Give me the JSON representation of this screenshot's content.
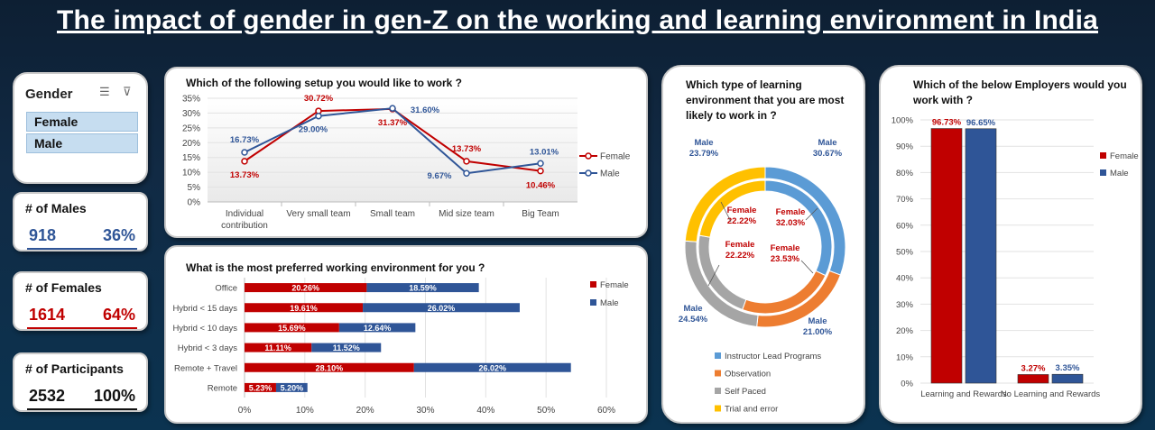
{
  "title": "The impact of gender in gen-Z on the working and learning environment in India",
  "slicer": {
    "header": "Gender",
    "items": [
      "Female",
      "Male"
    ]
  },
  "kpis": {
    "males": {
      "label": "# of Males",
      "value": "918",
      "pct": "36%",
      "color": "#2f5597"
    },
    "females": {
      "label": "# of Females",
      "value": "1614",
      "pct": "64%",
      "color": "#c00000"
    },
    "participants": {
      "label": "# of Participants",
      "value": "2532",
      "pct": "100%",
      "color": "#111111"
    }
  },
  "colors": {
    "female": "#c00000",
    "male": "#2f5597"
  },
  "chart_data": [
    {
      "type": "line",
      "title": "Which of the following setup you would like to work ?",
      "categories": [
        "Individual contribution",
        "Very small team",
        "Small team",
        "Mid size team",
        "Big Team"
      ],
      "series": [
        {
          "name": "Female",
          "values": [
            13.73,
            30.72,
            31.37,
            13.73,
            10.46
          ],
          "labels": [
            "13.73%",
            "30.72%",
            "31.37%",
            "13.73%",
            "10.46%"
          ]
        },
        {
          "name": "Male",
          "values": [
            16.73,
            29.0,
            31.6,
            9.67,
            13.01
          ],
          "labels": [
            "16.73%",
            "29.00%",
            "31.60%",
            "9.67%",
            "13.01%"
          ]
        }
      ],
      "yticks": [
        "0%",
        "5%",
        "10%",
        "15%",
        "20%",
        "25%",
        "30%",
        "35%"
      ],
      "ylim": [
        0,
        35
      ],
      "legend": "right"
    },
    {
      "type": "bar",
      "orientation": "horizontal-stacked",
      "title": "What is the most preferred working environment for you ?",
      "categories": [
        "Office",
        "Hybrid < 15 days",
        "Hybrid < 10 days",
        "Hybrid < 3 days",
        "Remote + Travel",
        "Remote"
      ],
      "series": [
        {
          "name": "Female",
          "values": [
            20.26,
            19.61,
            15.69,
            11.11,
            28.1,
            5.23
          ],
          "labels": [
            "20.26%",
            "19.61%",
            "15.69%",
            "11.11%",
            "28.10%",
            "5.23%"
          ]
        },
        {
          "name": "Male",
          "values": [
            18.59,
            26.02,
            12.64,
            11.52,
            26.02,
            5.2
          ],
          "labels": [
            "18.59%",
            "26.02%",
            "12.64%",
            "11.52%",
            "26.02%",
            "5.20%"
          ]
        }
      ],
      "xticks": [
        "0%",
        "10%",
        "20%",
        "30%",
        "40%",
        "50%",
        "60%"
      ],
      "xlim": [
        0,
        60
      ],
      "legend": "top-right"
    },
    {
      "type": "pie",
      "subtype": "double-donut",
      "title": "Which type of learning environment that you are most likely to work in ?",
      "categories": [
        "Instructor Lead Programs",
        "Observation",
        "Self Paced",
        "Trial and error"
      ],
      "category_colors": [
        "#5b9bd5",
        "#ed7d31",
        "#a5a5a5",
        "#ffc000"
      ],
      "series": [
        {
          "name": "Male",
          "ring": "outer",
          "values": [
            30.67,
            21.0,
            24.54,
            23.79
          ],
          "labels": [
            "30.67%",
            "21.00%",
            "24.54%",
            "23.79%"
          ]
        },
        {
          "name": "Female",
          "ring": "inner",
          "values": [
            32.03,
            23.53,
            22.22,
            22.22
          ],
          "labels": [
            "32.03%",
            "23.53%",
            "22.22%",
            "22.22%"
          ]
        }
      ],
      "legend": "bottom"
    },
    {
      "type": "bar",
      "title": "Which of the below Employers would you work with ?",
      "categories": [
        "Learning and Rewards",
        "No Learning and Rewards"
      ],
      "series": [
        {
          "name": "Female",
          "values": [
            96.73,
            3.27
          ],
          "labels": [
            "96.73%",
            "3.27%"
          ]
        },
        {
          "name": "Male",
          "values": [
            96.65,
            3.35
          ],
          "labels": [
            "96.65%",
            "3.35%"
          ]
        }
      ],
      "yticks": [
        "0%",
        "10%",
        "20%",
        "30%",
        "40%",
        "50%",
        "60%",
        "70%",
        "80%",
        "90%",
        "100%"
      ],
      "ylim": [
        0,
        100
      ],
      "legend": "right"
    }
  ]
}
